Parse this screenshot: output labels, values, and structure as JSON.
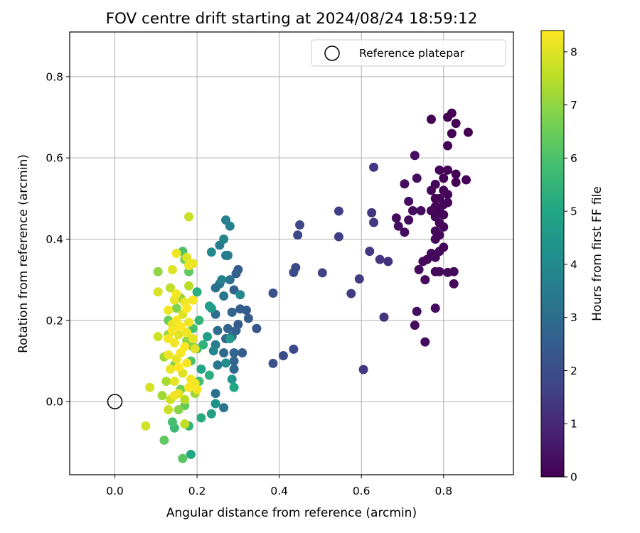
{
  "chart_data": {
    "type": "scatter",
    "title": "FOV centre drift starting at 2024/08/24 18:59:12",
    "xlabel": "Angular distance from reference (arcmin)",
    "ylabel": "Rotation from reference (arcmin)",
    "xlim": [
      -0.11,
      0.97
    ],
    "ylim": [
      -0.18,
      0.91
    ],
    "xticks": [
      0.0,
      0.2,
      0.4,
      0.6,
      0.8
    ],
    "yticks": [
      0.0,
      0.2,
      0.4,
      0.6,
      0.8
    ],
    "xtick_labels": [
      "0.0",
      "0.2",
      "0.4",
      "0.6",
      "0.8"
    ],
    "ytick_labels": [
      "0.0",
      "0.2",
      "0.4",
      "0.6",
      "0.8"
    ],
    "grid": true,
    "legend": {
      "position": "top-right",
      "label": "Reference platepar"
    },
    "reference_point": {
      "x": 0.0,
      "y": 0.0
    },
    "colorbar": {
      "label": "Hours from first FF file",
      "min": 0,
      "max": 8.4,
      "ticks": [
        0,
        1,
        2,
        3,
        4,
        5,
        6,
        7,
        8
      ],
      "tick_labels": [
        "0",
        "1",
        "2",
        "3",
        "4",
        "5",
        "6",
        "7",
        "8"
      ],
      "colormap": "viridis"
    },
    "points": [
      {
        "x": 0.77,
        "y": 0.695,
        "c": 0.0
      },
      {
        "x": 0.82,
        "y": 0.71,
        "c": 0.0
      },
      {
        "x": 0.81,
        "y": 0.7,
        "c": 0.0
      },
      {
        "x": 0.86,
        "y": 0.663,
        "c": 0.0
      },
      {
        "x": 0.83,
        "y": 0.685,
        "c": 0.0
      },
      {
        "x": 0.82,
        "y": 0.66,
        "c": 0.0
      },
      {
        "x": 0.81,
        "y": 0.63,
        "c": 0.0
      },
      {
        "x": 0.79,
        "y": 0.57,
        "c": 0.05
      },
      {
        "x": 0.81,
        "y": 0.57,
        "c": 0.05
      },
      {
        "x": 0.83,
        "y": 0.56,
        "c": 0.05
      },
      {
        "x": 0.8,
        "y": 0.55,
        "c": 0.05
      },
      {
        "x": 0.855,
        "y": 0.546,
        "c": 0.05
      },
      {
        "x": 0.83,
        "y": 0.54,
        "c": 0.05
      },
      {
        "x": 0.78,
        "y": 0.535,
        "c": 0.1
      },
      {
        "x": 0.77,
        "y": 0.52,
        "c": 0.1
      },
      {
        "x": 0.8,
        "y": 0.52,
        "c": 0.1
      },
      {
        "x": 0.81,
        "y": 0.51,
        "c": 0.1
      },
      {
        "x": 0.79,
        "y": 0.5,
        "c": 0.1
      },
      {
        "x": 0.78,
        "y": 0.5,
        "c": 0.1
      },
      {
        "x": 0.81,
        "y": 0.49,
        "c": 0.1
      },
      {
        "x": 0.8,
        "y": 0.485,
        "c": 0.1
      },
      {
        "x": 0.78,
        "y": 0.48,
        "c": 0.1
      },
      {
        "x": 0.79,
        "y": 0.47,
        "c": 0.1
      },
      {
        "x": 0.77,
        "y": 0.47,
        "c": 0.15
      },
      {
        "x": 0.8,
        "y": 0.46,
        "c": 0.15
      },
      {
        "x": 0.78,
        "y": 0.455,
        "c": 0.15
      },
      {
        "x": 0.79,
        "y": 0.44,
        "c": 0.15
      },
      {
        "x": 0.8,
        "y": 0.43,
        "c": 0.15
      },
      {
        "x": 0.78,
        "y": 0.42,
        "c": 0.15
      },
      {
        "x": 0.79,
        "y": 0.41,
        "c": 0.15
      },
      {
        "x": 0.78,
        "y": 0.4,
        "c": 0.15
      },
      {
        "x": 0.8,
        "y": 0.38,
        "c": 0.15
      },
      {
        "x": 0.79,
        "y": 0.37,
        "c": 0.15
      },
      {
        "x": 0.77,
        "y": 0.365,
        "c": 0.2
      },
      {
        "x": 0.78,
        "y": 0.355,
        "c": 0.2
      },
      {
        "x": 0.76,
        "y": 0.35,
        "c": 0.2
      },
      {
        "x": 0.75,
        "y": 0.345,
        "c": 0.2
      },
      {
        "x": 0.74,
        "y": 0.325,
        "c": 0.2
      },
      {
        "x": 0.78,
        "y": 0.32,
        "c": 0.2
      },
      {
        "x": 0.79,
        "y": 0.32,
        "c": 0.2
      },
      {
        "x": 0.81,
        "y": 0.318,
        "c": 0.2
      },
      {
        "x": 0.825,
        "y": 0.32,
        "c": 0.2
      },
      {
        "x": 0.755,
        "y": 0.3,
        "c": 0.2
      },
      {
        "x": 0.825,
        "y": 0.29,
        "c": 0.2
      },
      {
        "x": 0.78,
        "y": 0.23,
        "c": 0.25
      },
      {
        "x": 0.735,
        "y": 0.222,
        "c": 0.25
      },
      {
        "x": 0.73,
        "y": 0.188,
        "c": 0.25
      },
      {
        "x": 0.755,
        "y": 0.147,
        "c": 0.25
      },
      {
        "x": 0.73,
        "y": 0.606,
        "c": 0.3
      },
      {
        "x": 0.735,
        "y": 0.55,
        "c": 0.3
      },
      {
        "x": 0.705,
        "y": 0.536,
        "c": 0.3
      },
      {
        "x": 0.715,
        "y": 0.493,
        "c": 0.3
      },
      {
        "x": 0.725,
        "y": 0.47,
        "c": 0.3
      },
      {
        "x": 0.745,
        "y": 0.47,
        "c": 0.3
      },
      {
        "x": 0.685,
        "y": 0.452,
        "c": 0.3
      },
      {
        "x": 0.715,
        "y": 0.447,
        "c": 0.3
      },
      {
        "x": 0.69,
        "y": 0.432,
        "c": 0.3
      },
      {
        "x": 0.705,
        "y": 0.417,
        "c": 0.3
      },
      {
        "x": 0.63,
        "y": 0.577,
        "c": 1.4
      },
      {
        "x": 0.545,
        "y": 0.469,
        "c": 1.6
      },
      {
        "x": 0.625,
        "y": 0.465,
        "c": 1.4
      },
      {
        "x": 0.63,
        "y": 0.441,
        "c": 1.4
      },
      {
        "x": 0.45,
        "y": 0.435,
        "c": 1.8
      },
      {
        "x": 0.445,
        "y": 0.41,
        "c": 1.8
      },
      {
        "x": 0.545,
        "y": 0.406,
        "c": 1.6
      },
      {
        "x": 0.62,
        "y": 0.37,
        "c": 1.4
      },
      {
        "x": 0.645,
        "y": 0.35,
        "c": 1.3
      },
      {
        "x": 0.665,
        "y": 0.345,
        "c": 1.2
      },
      {
        "x": 0.44,
        "y": 0.33,
        "c": 1.9
      },
      {
        "x": 0.435,
        "y": 0.318,
        "c": 1.9
      },
      {
        "x": 0.505,
        "y": 0.317,
        "c": 1.7
      },
      {
        "x": 0.595,
        "y": 0.302,
        "c": 1.5
      },
      {
        "x": 0.575,
        "y": 0.266,
        "c": 1.5
      },
      {
        "x": 0.385,
        "y": 0.267,
        "c": 2.1
      },
      {
        "x": 0.655,
        "y": 0.208,
        "c": 1.3
      },
      {
        "x": 0.435,
        "y": 0.129,
        "c": 1.9
      },
      {
        "x": 0.41,
        "y": 0.113,
        "c": 2.0
      },
      {
        "x": 0.385,
        "y": 0.094,
        "c": 2.1
      },
      {
        "x": 0.605,
        "y": 0.079,
        "c": 1.4
      },
      {
        "x": 0.345,
        "y": 0.18,
        "c": 2.3
      },
      {
        "x": 0.325,
        "y": 0.205,
        "c": 2.4
      },
      {
        "x": 0.32,
        "y": 0.225,
        "c": 2.4
      },
      {
        "x": 0.305,
        "y": 0.228,
        "c": 2.5
      },
      {
        "x": 0.3,
        "y": 0.325,
        "c": 2.5
      },
      {
        "x": 0.295,
        "y": 0.315,
        "c": 2.6
      },
      {
        "x": 0.29,
        "y": 0.275,
        "c": 2.6
      },
      {
        "x": 0.285,
        "y": 0.22,
        "c": 2.7
      },
      {
        "x": 0.3,
        "y": 0.19,
        "c": 2.5
      },
      {
        "x": 0.295,
        "y": 0.175,
        "c": 2.6
      },
      {
        "x": 0.275,
        "y": 0.18,
        "c": 2.7
      },
      {
        "x": 0.285,
        "y": 0.16,
        "c": 2.8
      },
      {
        "x": 0.27,
        "y": 0.155,
        "c": 2.8
      },
      {
        "x": 0.29,
        "y": 0.12,
        "c": 2.7
      },
      {
        "x": 0.31,
        "y": 0.12,
        "c": 2.5
      },
      {
        "x": 0.29,
        "y": 0.1,
        "c": 2.7
      },
      {
        "x": 0.29,
        "y": 0.08,
        "c": 2.8
      },
      {
        "x": 0.265,
        "y": 0.12,
        "c": 2.9
      },
      {
        "x": 0.25,
        "y": 0.175,
        "c": 3.0
      },
      {
        "x": 0.245,
        "y": 0.215,
        "c": 3.0
      },
      {
        "x": 0.245,
        "y": 0.28,
        "c": 3.1
      },
      {
        "x": 0.255,
        "y": 0.29,
        "c": 3.2
      },
      {
        "x": 0.28,
        "y": 0.3,
        "c": 3.2
      },
      {
        "x": 0.265,
        "y": 0.26,
        "c": 3.3
      },
      {
        "x": 0.27,
        "y": 0.36,
        "c": 3.4
      },
      {
        "x": 0.275,
        "y": 0.36,
        "c": 3.5
      },
      {
        "x": 0.255,
        "y": 0.385,
        "c": 3.5
      },
      {
        "x": 0.27,
        "y": 0.447,
        "c": 3.6
      },
      {
        "x": 0.28,
        "y": 0.432,
        "c": 3.7
      },
      {
        "x": 0.265,
        "y": 0.4,
        "c": 3.8
      },
      {
        "x": 0.26,
        "y": 0.3,
        "c": 3.7
      },
      {
        "x": 0.305,
        "y": 0.263,
        "c": 3.9
      },
      {
        "x": 0.235,
        "y": 0.368,
        "c": 4.0
      },
      {
        "x": 0.245,
        "y": 0.14,
        "c": 3.5
      },
      {
        "x": 0.24,
        "y": 0.125,
        "c": 3.9
      },
      {
        "x": 0.25,
        "y": 0.09,
        "c": 3.4
      },
      {
        "x": 0.245,
        "y": 0.02,
        "c": 3.1
      },
      {
        "x": 0.265,
        "y": -0.015,
        "c": 3.2
      },
      {
        "x": 0.245,
        "y": -0.005,
        "c": 4.3
      },
      {
        "x": 0.235,
        "y": -0.03,
        "c": 4.8
      },
      {
        "x": 0.27,
        "y": 0.095,
        "c": 4.1
      },
      {
        "x": 0.285,
        "y": 0.055,
        "c": 4.5
      },
      {
        "x": 0.29,
        "y": 0.035,
        "c": 5.0
      },
      {
        "x": 0.28,
        "y": 0.155,
        "c": 4.6
      },
      {
        "x": 0.23,
        "y": 0.235,
        "c": 4.7
      },
      {
        "x": 0.235,
        "y": 0.23,
        "c": 4.5
      },
      {
        "x": 0.225,
        "y": 0.16,
        "c": 4.8
      },
      {
        "x": 0.23,
        "y": 0.065,
        "c": 5.3
      },
      {
        "x": 0.21,
        "y": 0.08,
        "c": 5.0
      },
      {
        "x": 0.215,
        "y": 0.14,
        "c": 5.4
      },
      {
        "x": 0.205,
        "y": 0.2,
        "c": 5.5
      },
      {
        "x": 0.2,
        "y": 0.27,
        "c": 5.3
      },
      {
        "x": 0.2,
        "y": 0.13,
        "c": 5.6
      },
      {
        "x": 0.205,
        "y": 0.05,
        "c": 5.8
      },
      {
        "x": 0.19,
        "y": 0.18,
        "c": 5.9
      },
      {
        "x": 0.185,
        "y": 0.1,
        "c": 6.0
      },
      {
        "x": 0.18,
        "y": -0.06,
        "c": 5.5
      },
      {
        "x": 0.185,
        "y": -0.13,
        "c": 5.0
      },
      {
        "x": 0.165,
        "y": -0.14,
        "c": 6.2
      },
      {
        "x": 0.21,
        "y": -0.04,
        "c": 5.2
      },
      {
        "x": 0.145,
        "y": -0.065,
        "c": 5.7
      },
      {
        "x": 0.14,
        "y": -0.05,
        "c": 5.9
      },
      {
        "x": 0.12,
        "y": -0.095,
        "c": 6.3
      },
      {
        "x": 0.165,
        "y": 0.37,
        "c": 6.0
      },
      {
        "x": 0.18,
        "y": 0.32,
        "c": 6.3
      },
      {
        "x": 0.17,
        "y": 0.35,
        "c": 6.6
      },
      {
        "x": 0.15,
        "y": 0.23,
        "c": 6.8
      },
      {
        "x": 0.13,
        "y": 0.2,
        "c": 6.5
      },
      {
        "x": 0.145,
        "y": 0.09,
        "c": 6.7
      },
      {
        "x": 0.16,
        "y": 0.03,
        "c": 6.6
      },
      {
        "x": 0.155,
        "y": -0.02,
        "c": 6.9
      },
      {
        "x": 0.17,
        "y": -0.01,
        "c": 6.4
      },
      {
        "x": 0.13,
        "y": 0.165,
        "c": 7.1
      },
      {
        "x": 0.175,
        "y": 0.15,
        "c": 7.0
      },
      {
        "x": 0.19,
        "y": 0.135,
        "c": 6.9
      },
      {
        "x": 0.16,
        "y": 0.255,
        "c": 7.0
      },
      {
        "x": 0.105,
        "y": 0.32,
        "c": 7.0
      },
      {
        "x": 0.12,
        "y": 0.11,
        "c": 7.2
      },
      {
        "x": 0.125,
        "y": 0.05,
        "c": 7.3
      },
      {
        "x": 0.115,
        "y": 0.015,
        "c": 7.2
      },
      {
        "x": 0.17,
        "y": -0.055,
        "c": 7.6
      },
      {
        "x": 0.13,
        "y": -0.02,
        "c": 7.7
      },
      {
        "x": 0.075,
        "y": -0.06,
        "c": 7.8
      },
      {
        "x": 0.085,
        "y": 0.035,
        "c": 7.9
      },
      {
        "x": 0.105,
        "y": 0.27,
        "c": 7.9
      },
      {
        "x": 0.105,
        "y": 0.16,
        "c": 7.8
      },
      {
        "x": 0.135,
        "y": 0.28,
        "c": 7.6
      },
      {
        "x": 0.18,
        "y": 0.285,
        "c": 7.5
      },
      {
        "x": 0.18,
        "y": 0.455,
        "c": 7.7
      },
      {
        "x": 0.15,
        "y": 0.365,
        "c": 8.2
      },
      {
        "x": 0.175,
        "y": 0.355,
        "c": 8.0
      },
      {
        "x": 0.19,
        "y": 0.34,
        "c": 8.1
      },
      {
        "x": 0.18,
        "y": 0.335,
        "c": 8.2
      },
      {
        "x": 0.14,
        "y": 0.325,
        "c": 8.0
      },
      {
        "x": 0.15,
        "y": 0.265,
        "c": 8.3
      },
      {
        "x": 0.145,
        "y": 0.25,
        "c": 8.1
      },
      {
        "x": 0.17,
        "y": 0.245,
        "c": 8.2
      },
      {
        "x": 0.19,
        "y": 0.25,
        "c": 8.3
      },
      {
        "x": 0.175,
        "y": 0.23,
        "c": 8.4
      },
      {
        "x": 0.13,
        "y": 0.225,
        "c": 8.2
      },
      {
        "x": 0.165,
        "y": 0.215,
        "c": 8.0
      },
      {
        "x": 0.15,
        "y": 0.2,
        "c": 8.3
      },
      {
        "x": 0.14,
        "y": 0.19,
        "c": 8.1
      },
      {
        "x": 0.18,
        "y": 0.195,
        "c": 8.2
      },
      {
        "x": 0.16,
        "y": 0.185,
        "c": 8.4
      },
      {
        "x": 0.14,
        "y": 0.175,
        "c": 8.3
      },
      {
        "x": 0.155,
        "y": 0.165,
        "c": 8.0
      },
      {
        "x": 0.175,
        "y": 0.17,
        "c": 8.2
      },
      {
        "x": 0.13,
        "y": 0.155,
        "c": 8.3
      },
      {
        "x": 0.145,
        "y": 0.145,
        "c": 8.2
      },
      {
        "x": 0.19,
        "y": 0.155,
        "c": 8.1
      },
      {
        "x": 0.17,
        "y": 0.135,
        "c": 8.4
      },
      {
        "x": 0.195,
        "y": 0.13,
        "c": 8.0
      },
      {
        "x": 0.16,
        "y": 0.12,
        "c": 8.3
      },
      {
        "x": 0.13,
        "y": 0.115,
        "c": 8.2
      },
      {
        "x": 0.15,
        "y": 0.105,
        "c": 8.1
      },
      {
        "x": 0.175,
        "y": 0.095,
        "c": 8.3
      },
      {
        "x": 0.155,
        "y": 0.085,
        "c": 8.4
      },
      {
        "x": 0.135,
        "y": 0.08,
        "c": 8.2
      },
      {
        "x": 0.165,
        "y": 0.07,
        "c": 8.0
      },
      {
        "x": 0.185,
        "y": 0.055,
        "c": 8.3
      },
      {
        "x": 0.145,
        "y": 0.05,
        "c": 8.1
      },
      {
        "x": 0.195,
        "y": 0.045,
        "c": 8.2
      },
      {
        "x": 0.18,
        "y": 0.035,
        "c": 8.4
      },
      {
        "x": 0.2,
        "y": 0.03,
        "c": 8.3
      },
      {
        "x": 0.155,
        "y": 0.02,
        "c": 8.1
      },
      {
        "x": 0.145,
        "y": 0.015,
        "c": 8.2
      },
      {
        "x": 0.135,
        "y": 0.005,
        "c": 7.8
      },
      {
        "x": 0.17,
        "y": 0.005,
        "c": 7.5
      },
      {
        "x": 0.195,
        "y": 0.02,
        "c": 7.2
      }
    ]
  }
}
